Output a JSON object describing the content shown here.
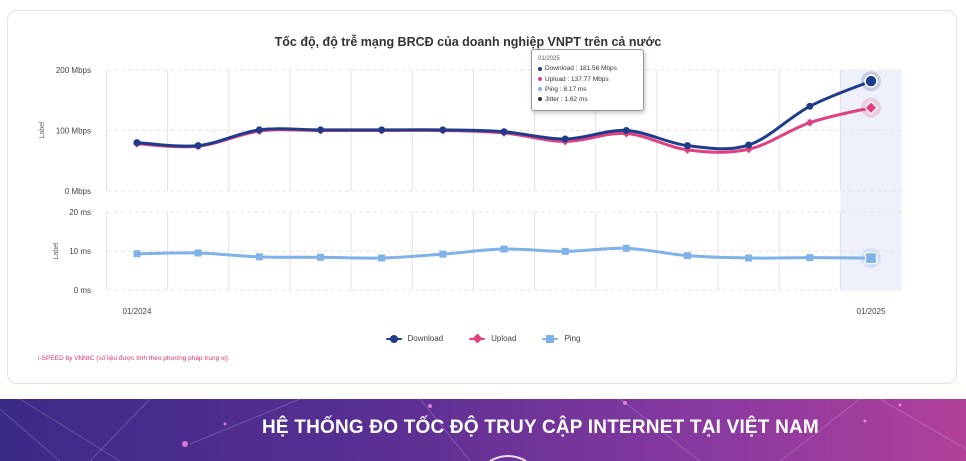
{
  "chart_data": {
    "type": "line",
    "title": "Tốc độ, độ trễ mạng BRCĐ của doanh nghiệp VNPT trên cả nước",
    "x_tick_labels": [
      "01/2024",
      "01/2025"
    ],
    "top_panel": {
      "ylabel": "Label",
      "ylim": [
        0,
        200
      ],
      "y_ticks": [
        "200 Mbps",
        "100 Mbps",
        "0 Mbps"
      ],
      "series": [
        {
          "name": "Download",
          "color": "#1f3c8c",
          "marker": "circle",
          "values": [
            80,
            75,
            101,
            101,
            101,
            101,
            98,
            86,
            100,
            75,
            76,
            140,
            181.56
          ]
        },
        {
          "name": "Upload",
          "color": "#e0407f",
          "marker": "diamond",
          "values": [
            78,
            74,
            99,
            100,
            100,
            100,
            96,
            82,
            95,
            68,
            69,
            113,
            137.77
          ]
        }
      ]
    },
    "bottom_panel": {
      "ylabel": "Label",
      "ylim": [
        0,
        20
      ],
      "y_ticks": [
        "20 ms",
        "10 ms",
        "0 ms"
      ],
      "series": [
        {
          "name": "Ping",
          "color": "#7fb2e8",
          "marker": "square",
          "values": [
            9.3,
            9.5,
            8.5,
            8.4,
            8.2,
            9.2,
            10.5,
            9.9,
            10.7,
            8.8,
            8.2,
            8.3,
            8.17
          ]
        }
      ]
    },
    "highlight_index": 12,
    "grid": true,
    "legend_position": "bottom"
  },
  "tooltip": {
    "header": "01/2025",
    "rows": [
      {
        "label": "Download : 181.56 Mbps",
        "color": "#1f3c8c"
      },
      {
        "label": "Upload : 137.77 Mbps",
        "color": "#e0407f"
      },
      {
        "label": "Ping : 8.17 ms",
        "color": "#7fb2e8"
      },
      {
        "label": "Jitter : 1.62 ms",
        "color": "#333333"
      }
    ]
  },
  "legend": [
    {
      "name": "Download",
      "color": "#1f3c8c",
      "marker": "circle"
    },
    {
      "name": "Upload",
      "color": "#e0407f",
      "marker": "diamond"
    },
    {
      "name": "Ping",
      "color": "#7fb2e8",
      "marker": "square"
    }
  ],
  "footnote": "i-SPEED by VNNIC (số liệu được tính theo phương pháp trung vị)",
  "banner": {
    "title": "HỆ THỐNG ĐO TỐC ĐỘ TRUY CẬP INTERNET TẠI VIỆT NAM"
  }
}
